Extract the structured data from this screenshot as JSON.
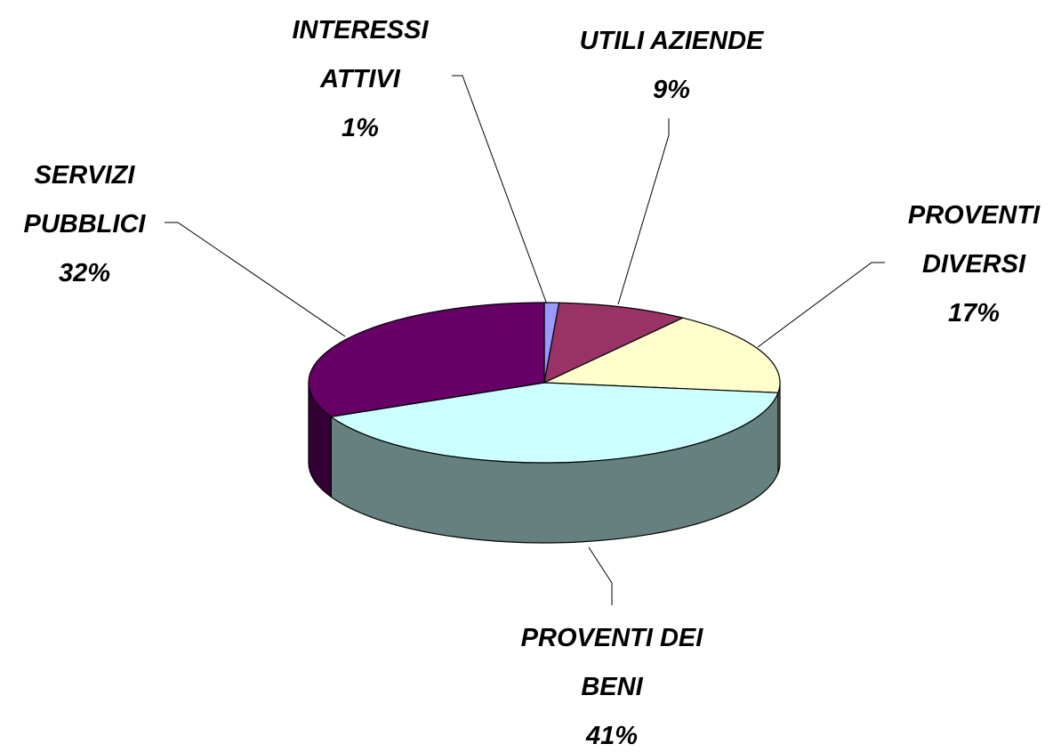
{
  "chart_data": {
    "type": "pie",
    "categories": [
      "INTERESSI ATTIVI",
      "UTILI AZIENDE",
      "PROVENTI DIVERSI",
      "PROVENTI DEI BENI",
      "SERVIZI PUBBLICI"
    ],
    "values": [
      1,
      9,
      17,
      41,
      32
    ],
    "value_labels": [
      "1%",
      "9%",
      "17%",
      "41%",
      "32%"
    ],
    "colors": [
      "#9999ff",
      "#993366",
      "#ffffcc",
      "#ccffff",
      "#660066"
    ]
  }
}
